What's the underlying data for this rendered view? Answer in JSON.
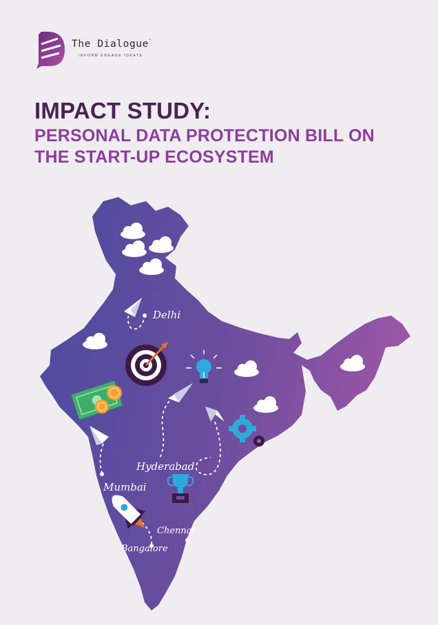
{
  "brand": {
    "name": "The Dialogue",
    "trademark": "™",
    "tagline": "INFORM   ENGAGE   IDEATE"
  },
  "title": {
    "main": "IMPACT STUDY:",
    "subtitle_line1": "PERSONAL DATA PROTECTION BILL ON",
    "subtitle_line2": "THE START-UP ECOSYSTEM"
  },
  "map": {
    "cities": {
      "delhi": "Delhi",
      "hyderabad": "Hyderabad",
      "mumbai": "Mumbai",
      "chennai": "Chennai",
      "bangalore": "Bangalore"
    },
    "icons": [
      "cloud-icon",
      "target-icon",
      "lightbulb-icon",
      "money-icon",
      "gear-icon",
      "trophy-icon",
      "rocket-icon",
      "paper-plane-icon"
    ]
  },
  "colors": {
    "background": "#efedf0",
    "title_dark": "#4a2255",
    "title_purple": "#8c3d9d",
    "map_start": "#4a4ca0",
    "map_end": "#9a55a6",
    "accent_blue": "#2fa8dc",
    "accent_orange": "#e5702b"
  }
}
